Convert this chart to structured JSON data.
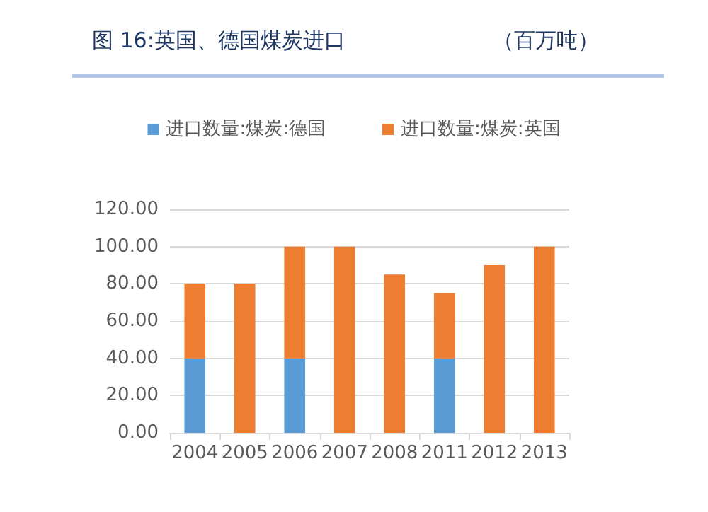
{
  "chart_data": {
    "type": "bar",
    "title": "图 16:英国、德国煤炭进口",
    "subtitle": "（百万吨）",
    "categories": [
      "2004",
      "2005",
      "2006",
      "2007",
      "2008",
      "2011",
      "2012",
      "2013"
    ],
    "stacked": true,
    "series": [
      {
        "name": "进口数量:煤炭:德国",
        "color": "#5b9bd5",
        "values": [
          40,
          null,
          40,
          null,
          null,
          40,
          null,
          null
        ]
      },
      {
        "name": "进口数量:煤炭:英国",
        "color": "#ed7d31",
        "values": [
          40,
          80,
          60,
          100,
          85,
          35,
          90,
          100
        ]
      }
    ],
    "ylim": [
      0,
      120
    ],
    "yticks": [
      {
        "value": 0,
        "label": "0.00"
      },
      {
        "value": 20,
        "label": "20.00"
      },
      {
        "value": 40,
        "label": "40.00"
      },
      {
        "value": 60,
        "label": "60.00"
      },
      {
        "value": 80,
        "label": "80.00"
      },
      {
        "value": 100,
        "label": "100.00"
      },
      {
        "value": 120,
        "label": "120.00"
      }
    ],
    "grid": "y",
    "legend": "top"
  }
}
